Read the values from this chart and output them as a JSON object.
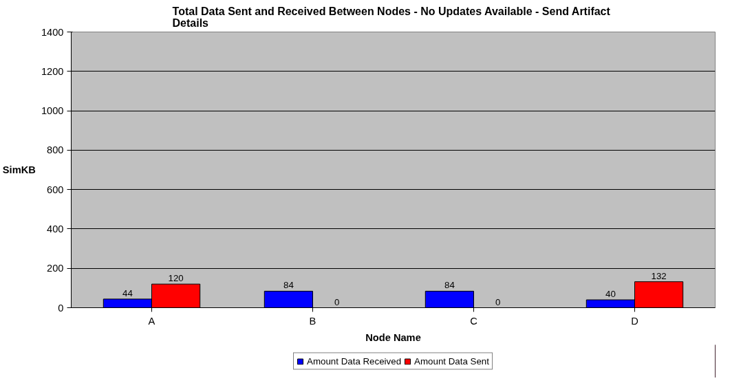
{
  "chart_data": {
    "type": "bar",
    "title": "Total Data Sent and Received Between Nodes  - No Updates Available - Send Artifact Details",
    "xlabel": "Node Name",
    "ylabel": "SimKB",
    "categories": [
      "A",
      "B",
      "C",
      "D"
    ],
    "series": [
      {
        "name": "Amount Data Received",
        "color": "#0000ff",
        "values": [
          44,
          84,
          84,
          40
        ]
      },
      {
        "name": "Amount Data Sent",
        "color": "#ff0000",
        "values": [
          120,
          0,
          0,
          132
        ]
      }
    ],
    "ylim": [
      0,
      1400
    ],
    "yticks": [
      0,
      200,
      400,
      600,
      800,
      1000,
      1200,
      1400
    ],
    "grid": "y",
    "legend": "bottom",
    "data_labels": true
  }
}
